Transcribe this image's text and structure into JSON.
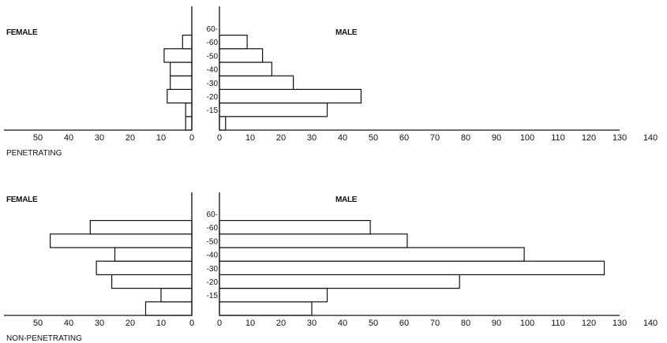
{
  "chart_data": [
    {
      "type": "bar",
      "title": "PENETRATING",
      "left_label": "FEMALE",
      "right_label": "MALE",
      "categories": [
        "",
        "-15",
        "-20",
        "-30",
        "-40",
        "-50",
        "-60",
        "60-"
      ],
      "series": [
        {
          "name": "FEMALE",
          "values": [
            2,
            2,
            8,
            7,
            7,
            9,
            3,
            0
          ]
        },
        {
          "name": "MALE",
          "values": [
            2,
            35,
            46,
            24,
            17,
            14,
            9,
            0
          ]
        }
      ],
      "xlim_female": [
        0,
        50
      ],
      "xlim_male": [
        0,
        140
      ],
      "female_ticks": [
        50,
        40,
        30,
        20,
        10,
        0
      ],
      "male_ticks": [
        0,
        10,
        20,
        30,
        40,
        50,
        60,
        70,
        80,
        90,
        100,
        110,
        120,
        130,
        140
      ]
    },
    {
      "type": "bar",
      "title": "NON-PENETRATING",
      "left_label": "FEMALE",
      "right_label": "MALE",
      "categories": [
        "",
        "-15",
        "-20",
        "-30",
        "-40",
        "-50",
        "-60",
        "60-"
      ],
      "series": [
        {
          "name": "FEMALE",
          "values": [
            15,
            10,
            26,
            31,
            25,
            46,
            33,
            0
          ]
        },
        {
          "name": "MALE",
          "values": [
            30,
            35,
            78,
            125,
            99,
            61,
            49,
            0
          ]
        }
      ],
      "xlim_female": [
        0,
        50
      ],
      "xlim_male": [
        0,
        140
      ],
      "female_ticks": [
        50,
        40,
        30,
        20,
        10,
        0
      ],
      "male_ticks": [
        0,
        10,
        20,
        30,
        40,
        50,
        60,
        70,
        80,
        90,
        100,
        110,
        120,
        130,
        140
      ]
    }
  ]
}
